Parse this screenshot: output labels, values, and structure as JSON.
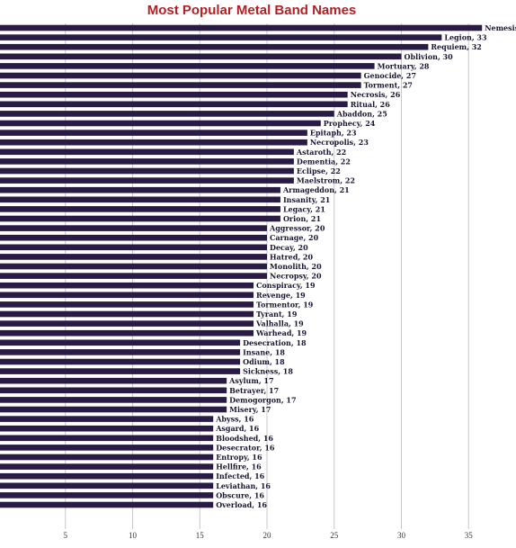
{
  "chart_data": {
    "type": "bar",
    "orientation": "horizontal",
    "title": "Most Popular Metal Band Names",
    "xlabel": "",
    "ylabel": "",
    "xlim": [
      0,
      38
    ],
    "xticks": [
      5,
      10,
      15,
      20,
      25,
      30,
      35
    ],
    "grid": true,
    "legend": "none",
    "data_labels": "category, value",
    "colors": {
      "bar": "#2a1b45",
      "title": "#b31f24",
      "grid": "#c8c8c8"
    },
    "categories": [
      "Nemesis",
      "Legion",
      "Requiem",
      "Oblivion",
      "Mortuary",
      "Genocide",
      "Torment",
      "Necrosis",
      "Ritual",
      "Abaddon",
      "Prophecy",
      "Epitaph",
      "Necropolis",
      "Astaroth",
      "Dementia",
      "Eclipse",
      "Maelstrom",
      "Armageddon",
      "Insanity",
      "Legacy",
      "Orion",
      "Aggressor",
      "Carnage",
      "Decay",
      "Hatred",
      "Monolith",
      "Necropsy",
      "Conspiracy",
      "Revenge",
      "Tormentor",
      "Tyrant",
      "Valhalla",
      "Warhead",
      "Desecration",
      "Insane",
      "Odium",
      "Sickness",
      "Asylum",
      "Betrayer",
      "Demogorgon",
      "Misery",
      "Abyss",
      "Asgard",
      "Bloodshed",
      "Desecrator",
      "Entropy",
      "Hellfire",
      "Infected",
      "Leviathan",
      "Obscure",
      "Overload"
    ],
    "values": [
      36,
      33,
      32,
      30,
      28,
      27,
      27,
      26,
      26,
      25,
      24,
      23,
      23,
      22,
      22,
      22,
      22,
      21,
      21,
      21,
      21,
      20,
      20,
      20,
      20,
      20,
      20,
      19,
      19,
      19,
      19,
      19,
      19,
      18,
      18,
      18,
      18,
      17,
      17,
      17,
      17,
      16,
      16,
      16,
      16,
      16,
      16,
      16,
      16,
      16,
      16
    ]
  }
}
